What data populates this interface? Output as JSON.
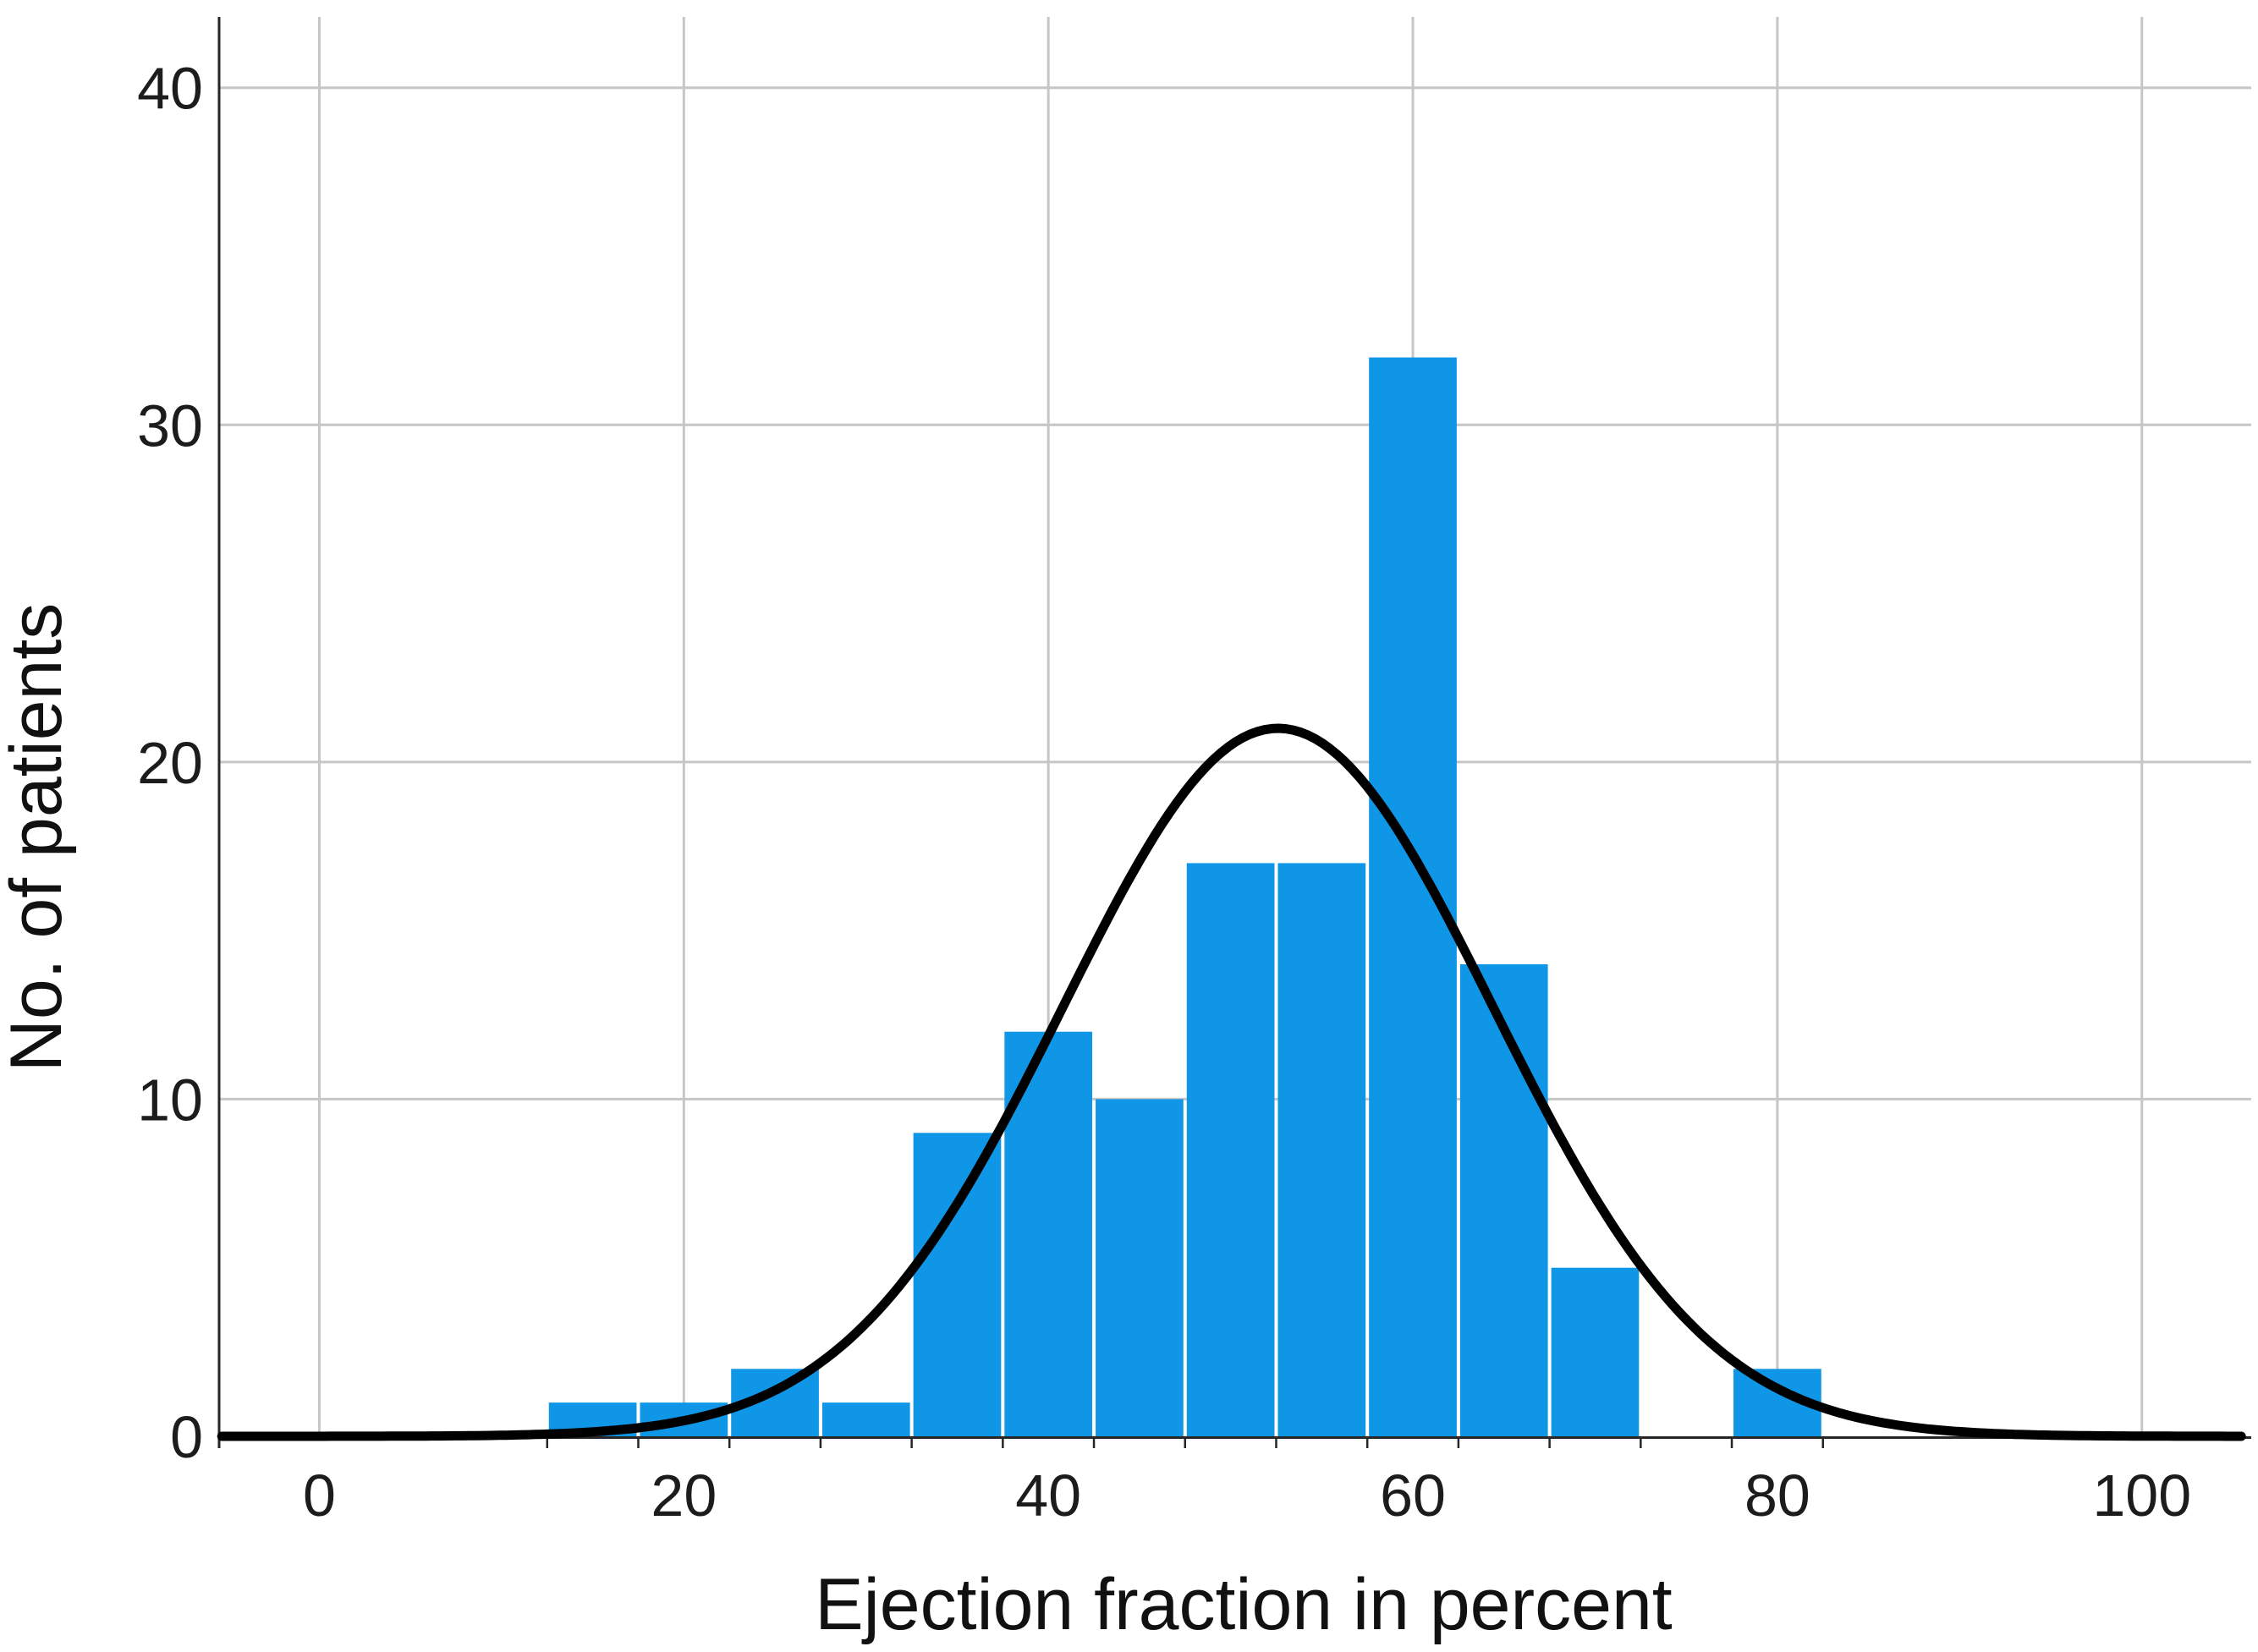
{
  "chart_data": {
    "type": "bar",
    "subtype": "histogram-with-normal-curve",
    "title": "",
    "xlabel": "Ejection fraction in percent",
    "ylabel": "No. of patients",
    "x_tick_labels": [
      "0",
      "20",
      "40",
      "60",
      "80",
      "100"
    ],
    "x_tick_values": [
      0,
      20,
      40,
      60,
      80,
      100
    ],
    "y_tick_labels": [
      "0",
      "10",
      "20",
      "30",
      "40"
    ],
    "y_tick_values": [
      0,
      10,
      20,
      30,
      40
    ],
    "xlim": [
      -5.5,
      106
    ],
    "ylim": [
      0,
      42.1
    ],
    "bin_width": 5,
    "bins": [
      {
        "center": 15,
        "count": 1
      },
      {
        "center": 20,
        "count": 1
      },
      {
        "center": 25,
        "count": 2
      },
      {
        "center": 30,
        "count": 1
      },
      {
        "center": 35,
        "count": 9
      },
      {
        "center": 40,
        "count": 12
      },
      {
        "center": 45,
        "count": 10
      },
      {
        "center": 50,
        "count": 17
      },
      {
        "center": 55,
        "count": 17
      },
      {
        "center": 60,
        "count": 32
      },
      {
        "center": 65,
        "count": 14
      },
      {
        "center": 70,
        "count": 5
      },
      {
        "center": 75,
        "count": 0
      },
      {
        "center": 80,
        "count": 2
      }
    ],
    "normal_curve": {
      "mean": 52.6,
      "sd": 11.8,
      "peak_height": 21.0
    },
    "grid": true,
    "legend": "none",
    "colors": {
      "bar": "#1096E6",
      "curve": "#000000",
      "grid": "#c6c6c6",
      "axis": "#262626",
      "text": "#1c1c1c",
      "background": "#ffffff"
    }
  }
}
